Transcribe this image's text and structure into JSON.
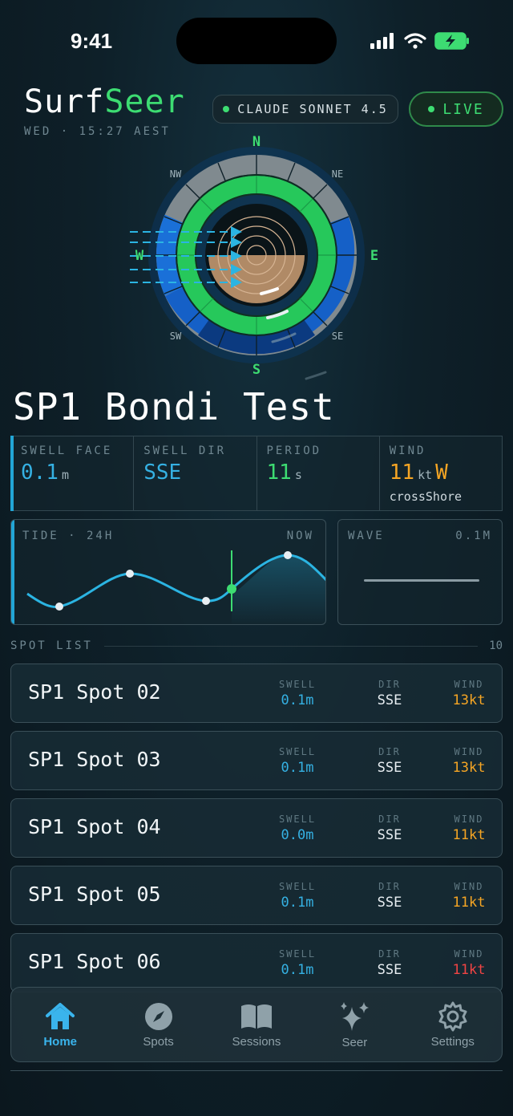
{
  "status_bar": {
    "time": "9:41"
  },
  "header": {
    "logo_a": "Surf",
    "logo_b": "Seer",
    "dateline": "WED · 15:27 AEST",
    "model": "CLAUDE SONNET 4.5",
    "live": "LIVE"
  },
  "compass": {
    "n": "N",
    "ne": "NE",
    "e": "E",
    "se": "SE",
    "s": "S",
    "sw": "SW",
    "w": "W",
    "nw": "NW"
  },
  "spot": {
    "title": "SP1 Bondi Test",
    "swell_face": {
      "label": "SWELL FACE",
      "value": "0.1",
      "unit": "m"
    },
    "swell_dir": {
      "label": "SWELL DIR",
      "value": "SSE"
    },
    "period": {
      "label": "PERIOD",
      "value": "11",
      "unit": "s"
    },
    "wind": {
      "label": "WIND",
      "value": "11",
      "unit": "kt",
      "dir": "W",
      "sub": "crossShore"
    }
  },
  "tide": {
    "label": "TIDE · 24H",
    "now": "NOW"
  },
  "wave": {
    "label": "WAVE",
    "value": "0.1M"
  },
  "spot_list": {
    "label": "SPOT LIST",
    "count": "10",
    "col_swell": "SWELL",
    "col_dir": "DIR",
    "col_wind": "WIND",
    "rows": [
      {
        "name": "SP1 Spot 02",
        "swell": "0.1m",
        "dir": "SSE",
        "wind": "13kt",
        "wind_color": "#f5a524"
      },
      {
        "name": "SP1 Spot 03",
        "swell": "0.1m",
        "dir": "SSE",
        "wind": "13kt",
        "wind_color": "#f5a524"
      },
      {
        "name": "SP1 Spot 04",
        "swell": "0.0m",
        "dir": "SSE",
        "wind": "11kt",
        "wind_color": "#f5a524"
      },
      {
        "name": "SP1 Spot 05",
        "swell": "0.1m",
        "dir": "SSE",
        "wind": "11kt",
        "wind_color": "#f5a524"
      },
      {
        "name": "SP1 Spot 06",
        "swell": "0.1m",
        "dir": "SSE",
        "wind": "11kt",
        "wind_color": "#ef4444"
      }
    ]
  },
  "tabs": [
    {
      "label": "Home",
      "icon": "home-icon",
      "active": true
    },
    {
      "label": "Spots",
      "icon": "compass-icon",
      "active": false
    },
    {
      "label": "Sessions",
      "icon": "book-icon",
      "active": false
    },
    {
      "label": "Seer",
      "icon": "sparkle-icon",
      "active": false
    },
    {
      "label": "Settings",
      "icon": "gear-icon",
      "active": false
    }
  ],
  "colors": {
    "accent_green": "#3ddc72",
    "accent_blue": "#22a6d6",
    "warn_orange": "#f5a524",
    "alert_red": "#ef4444"
  }
}
